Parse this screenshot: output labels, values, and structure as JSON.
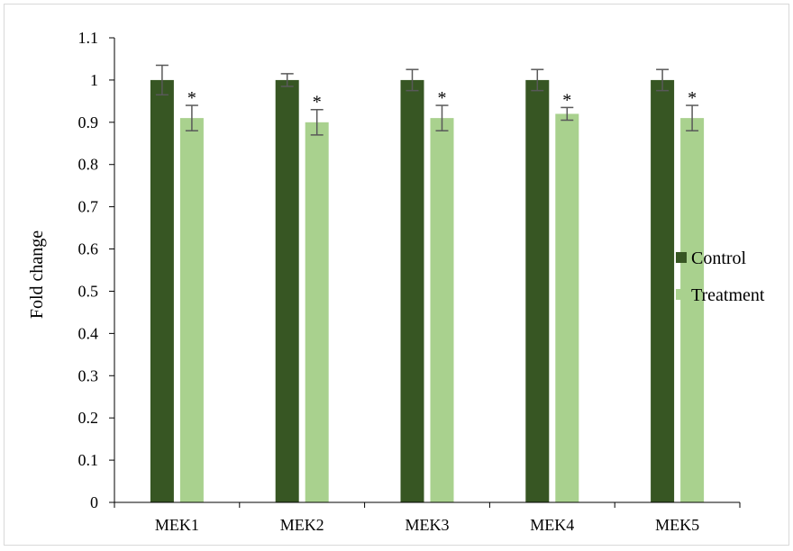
{
  "chart_data": {
    "type": "bar",
    "title": "",
    "xlabel": "",
    "ylabel": "Fold change",
    "ylim": [
      0,
      1.1
    ],
    "yticks": [
      "0",
      "0.1",
      "0.2",
      "0.3",
      "0.4",
      "0.5",
      "0.6",
      "0.7",
      "0.8",
      "0.9",
      "1",
      "1.1"
    ],
    "categories": [
      "MEK1",
      "MEK2",
      "MEK3",
      "MEK4",
      "MEK5"
    ],
    "series": [
      {
        "name": "Control",
        "color": "#375623",
        "values": [
          1.0,
          1.0,
          1.0,
          1.0,
          1.0
        ],
        "errors": [
          0.035,
          0.015,
          0.025,
          0.025,
          0.025
        ]
      },
      {
        "name": "Treatment",
        "color": "#a9d18e",
        "values": [
          0.91,
          0.9,
          0.91,
          0.92,
          0.91
        ],
        "errors": [
          0.03,
          0.03,
          0.03,
          0.015,
          0.03
        ]
      }
    ],
    "annotations": [
      "*",
      "*",
      "*",
      "*",
      "*"
    ],
    "grid": false,
    "legend_position": "right"
  }
}
